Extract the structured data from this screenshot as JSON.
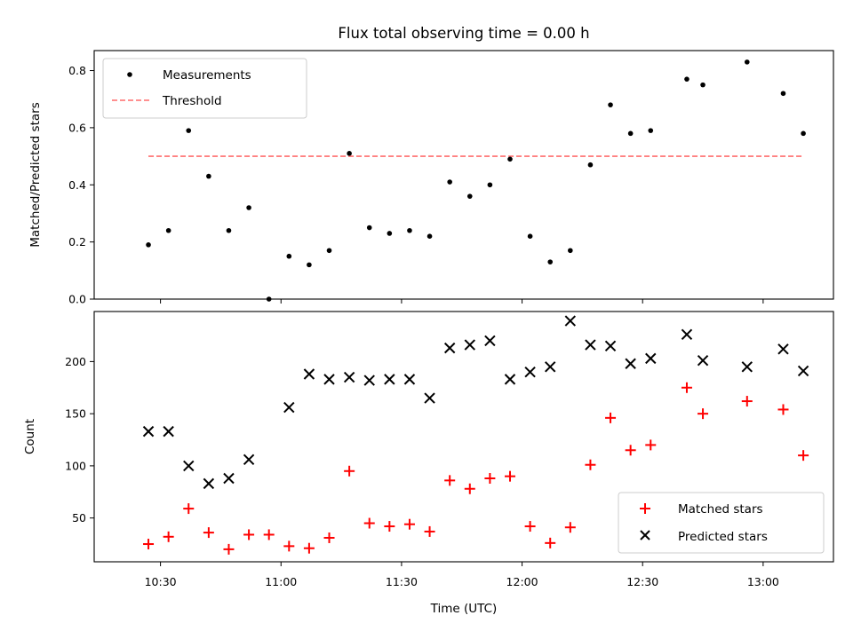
{
  "chart_data": [
    {
      "type": "scatter",
      "title": "Flux total observing time = 0.00 h",
      "xlabel": "",
      "ylabel": "Matched/Predicted stars",
      "ylim": [
        0,
        0.87
      ],
      "yticks": [
        "0.0",
        "0.2",
        "0.4",
        "0.6",
        "0.8"
      ],
      "ytick_values": [
        0,
        0.2,
        0.4,
        0.6,
        0.8
      ],
      "legend_position": "top-left",
      "series": [
        {
          "name": "Measurements",
          "color": "#000000",
          "marker": "dot",
          "x": [
            "10:27",
            "10:32",
            "10:37",
            "10:42",
            "10:47",
            "10:52",
            "10:57",
            "11:02",
            "11:07",
            "11:12",
            "11:17",
            "11:22",
            "11:27",
            "11:32",
            "11:37",
            "11:42",
            "11:47",
            "11:52",
            "11:57",
            "12:02",
            "12:07",
            "12:12",
            "12:17",
            "12:22",
            "12:27",
            "12:32",
            "12:41",
            "12:45",
            "12:56",
            "13:05",
            "13:10"
          ],
          "values": [
            0.19,
            0.24,
            0.59,
            0.43,
            0.24,
            0.32,
            0.0,
            0.15,
            0.12,
            0.17,
            0.51,
            0.25,
            0.23,
            0.24,
            0.22,
            0.41,
            0.36,
            0.4,
            0.49,
            0.22,
            0.13,
            0.17,
            0.47,
            0.68,
            0.58,
            0.59,
            0.77,
            0.75,
            0.83,
            0.72,
            0.58
          ]
        }
      ],
      "threshold": {
        "name": "Threshold",
        "value": 0.5,
        "x_start": "10:27",
        "x_end": "13:10",
        "color": "#ff8080"
      }
    },
    {
      "type": "scatter",
      "title": "",
      "xlabel": "Time (UTC)",
      "ylabel": "Count",
      "ylim": [
        8,
        248
      ],
      "yticks": [
        "50",
        "100",
        "150",
        "200"
      ],
      "ytick_values": [
        50,
        100,
        150,
        200
      ],
      "xticks": [
        "10:30",
        "11:00",
        "11:30",
        "12:00",
        "12:30",
        "13:00"
      ],
      "legend_position": "bottom-right",
      "series": [
        {
          "name": "Matched stars",
          "color": "#ff0000",
          "marker": "plus",
          "x": [
            "10:27",
            "10:32",
            "10:37",
            "10:42",
            "10:47",
            "10:52",
            "10:57",
            "11:02",
            "11:07",
            "11:12",
            "11:17",
            "11:22",
            "11:27",
            "11:32",
            "11:37",
            "11:42",
            "11:47",
            "11:52",
            "11:57",
            "12:02",
            "12:07",
            "12:12",
            "12:17",
            "12:22",
            "12:27",
            "12:32",
            "12:41",
            "12:45",
            "12:56",
            "13:05",
            "13:10"
          ],
          "values": [
            25,
            32,
            59,
            36,
            20,
            34,
            34,
            23,
            21,
            31,
            95,
            45,
            42,
            44,
            37,
            86,
            78,
            88,
            90,
            42,
            26,
            41,
            101,
            146,
            115,
            120,
            175,
            150,
            162,
            154,
            110
          ]
        },
        {
          "name": "Predicted stars",
          "color": "#000000",
          "marker": "x",
          "x": [
            "10:27",
            "10:32",
            "10:37",
            "10:42",
            "10:47",
            "10:52",
            "11:02",
            "11:07",
            "11:12",
            "11:17",
            "11:22",
            "11:27",
            "11:32",
            "11:37",
            "11:42",
            "11:47",
            "11:52",
            "11:57",
            "12:02",
            "12:07",
            "12:12",
            "12:17",
            "12:22",
            "12:27",
            "12:32",
            "12:41",
            "12:45",
            "12:56",
            "13:05",
            "13:10"
          ],
          "values": [
            133,
            133,
            100,
            83,
            88,
            106,
            156,
            188,
            183,
            185,
            182,
            183,
            183,
            165,
            213,
            216,
            220,
            183,
            190,
            195,
            239,
            216,
            215,
            198,
            203,
            226,
            201,
            195,
            212,
            191
          ]
        }
      ]
    }
  ]
}
